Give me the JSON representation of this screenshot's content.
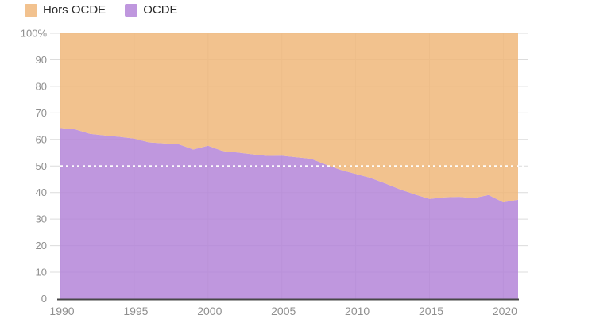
{
  "legend": {
    "items": [
      {
        "label": "Hors OCDE",
        "color": "#f2c28f"
      },
      {
        "label": "OCDE",
        "color": "#bf97de"
      }
    ]
  },
  "chart_data": {
    "type": "area",
    "stacked": true,
    "title": "",
    "xlabel": "",
    "ylabel": "",
    "unit": "%",
    "ylim": [
      0,
      100
    ],
    "grid": true,
    "legend_position": "top-left",
    "x": [
      1990,
      1991,
      1992,
      1993,
      1994,
      1995,
      1996,
      1997,
      1998,
      1999,
      2000,
      2001,
      2002,
      2003,
      2004,
      2005,
      2006,
      2007,
      2008,
      2009,
      2010,
      2011,
      2012,
      2013,
      2014,
      2015,
      2016,
      2017,
      2018,
      2019,
      2020,
      2021
    ],
    "series": [
      {
        "name": "OCDE",
        "color": "#bf97de",
        "values": [
          64.3,
          63.8,
          62.1,
          61.5,
          61.0,
          60.3,
          58.9,
          58.5,
          58.2,
          56.2,
          57.6,
          55.6,
          55.1,
          54.4,
          53.8,
          53.9,
          53.3,
          52.7,
          50.5,
          48.5,
          47.0,
          45.5,
          43.4,
          41.2,
          39.3,
          37.6,
          38.2,
          38.4,
          37.9,
          39.1,
          36.3,
          37.3
        ]
      },
      {
        "name": "Hors OCDE",
        "color": "#f2c28f",
        "values": [
          35.7,
          36.2,
          37.9,
          38.5,
          39.0,
          39.7,
          41.1,
          41.5,
          41.8,
          43.8,
          42.4,
          44.4,
          44.9,
          45.6,
          46.2,
          46.1,
          46.7,
          47.3,
          49.5,
          51.5,
          53.0,
          54.5,
          56.6,
          58.8,
          60.7,
          62.4,
          61.8,
          61.6,
          62.1,
          60.9,
          63.7,
          62.7
        ]
      }
    ],
    "y_tick_labels": [
      "100%",
      "90",
      "80",
      "70",
      "60",
      "50",
      "40",
      "30",
      "20",
      "10",
      "0"
    ],
    "y_tick_values": [
      100,
      90,
      80,
      70,
      60,
      50,
      40,
      30,
      20,
      10,
      0
    ],
    "x_tick_labels": [
      "1990",
      "1995",
      "2000",
      "2005",
      "2010",
      "2015",
      "2020"
    ],
    "x_tick_values": [
      1990,
      1995,
      2000,
      2005,
      2010,
      2015,
      2020
    ],
    "reference_line": {
      "value": 50,
      "style": "dotted",
      "color": "#ffffff"
    }
  }
}
